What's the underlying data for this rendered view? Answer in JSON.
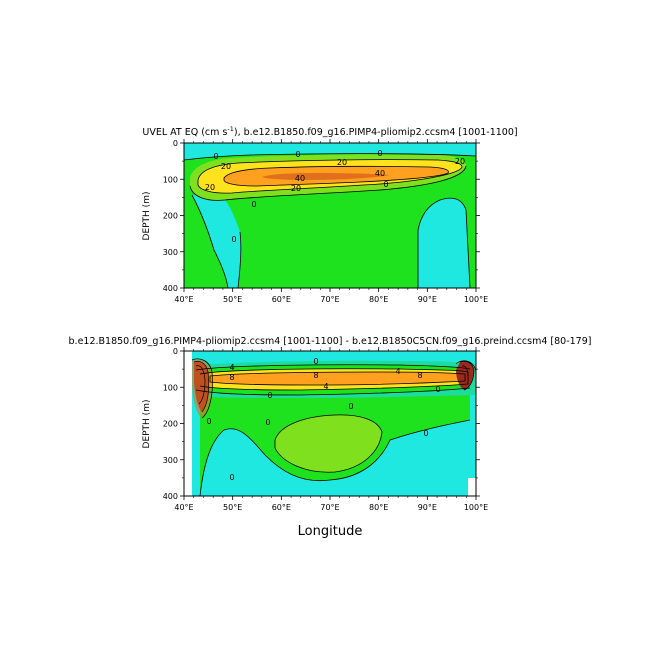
{
  "chart_data": [
    {
      "type": "contour",
      "title": "UVEL AT EQ (cm s",
      "title_sup": "-1",
      "title_rest": "), b.e12.B1850.f09_g16.PIMP4-pliomip2.ccsm4 [1001-1100]",
      "ylabel": "DEPTH (m)",
      "xlabel": "",
      "x_ticks": [
        "40°E",
        "50°E",
        "60°E",
        "70°E",
        "80°E",
        "90°E",
        "100°E"
      ],
      "y_ticks": [
        "0",
        "100",
        "200",
        "300",
        "400"
      ],
      "xlim": [
        40,
        100
      ],
      "ylim": [
        0,
        400
      ],
      "y_reversed": true,
      "contour_labels": [
        "0",
        "0",
        "20",
        "20",
        "0",
        "20",
        "40",
        "40",
        "20",
        "20",
        "0",
        "0",
        "0"
      ],
      "jet": {
        "x_start": 44,
        "x_end": 98,
        "depth_center": 85,
        "max": 40
      }
    },
    {
      "type": "contour",
      "title": "b.e12.B1850.f09_g16.PIMP4-pliomip2.ccsm4 [1001-1100] - b.e12.B1850C5CN.f09_g16.preind.ccsm4 [80-179]",
      "ylabel": "DEPTH (m)",
      "xlabel": "Longitude",
      "x_ticks": [
        "40°E",
        "50°E",
        "60°E",
        "70°E",
        "80°E",
        "90°E",
        "100°E"
      ],
      "y_ticks": [
        "0",
        "100",
        "200",
        "300",
        "400"
      ],
      "xlim": [
        40,
        100
      ],
      "ylim": [
        0,
        400
      ],
      "y_reversed": true,
      "contour_labels": [
        "0",
        "4",
        "8",
        "8",
        "4",
        "8",
        "4",
        "0",
        "0",
        "0",
        "0",
        "0",
        "0",
        "0"
      ],
      "jet": {
        "x_start": 43,
        "x_end": 99,
        "depth_center": 80,
        "max": 8
      }
    }
  ],
  "colors": {
    "green": "#1ee21e",
    "light_green": "#7fe01e",
    "cyan": "#1ee8e0",
    "teal": "#1edca0",
    "yellow": "#ffe21e",
    "orange": "#ffa01e",
    "dark_orange": "#e0701e",
    "red_brown": "#9a2a1e"
  }
}
